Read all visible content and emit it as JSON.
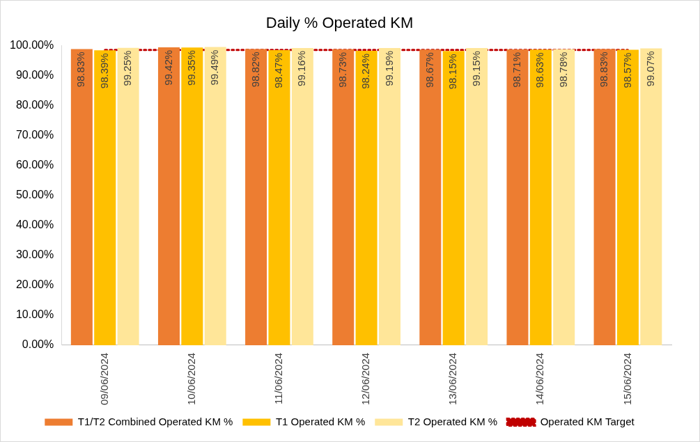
{
  "chart_data": {
    "type": "bar",
    "title": "Daily % Operated KM",
    "categories": [
      "09/06/2024",
      "10/06/2024",
      "11/06/2024",
      "12/06/2024",
      "13/06/2024",
      "14/06/2024",
      "15/06/2024"
    ],
    "ylim": [
      0,
      100
    ],
    "yticks": [
      {
        "value": 0,
        "label": "0.00%"
      },
      {
        "value": 10,
        "label": "10.00%"
      },
      {
        "value": 20,
        "label": "20.00%"
      },
      {
        "value": 30,
        "label": "30.00%"
      },
      {
        "value": 40,
        "label": "40.00%"
      },
      {
        "value": 50,
        "label": "50.00%"
      },
      {
        "value": 60,
        "label": "60.00%"
      },
      {
        "value": 70,
        "label": "70.00%"
      },
      {
        "value": 80,
        "label": "80.00%"
      },
      {
        "value": 90,
        "label": "90.00%"
      },
      {
        "value": 100,
        "label": "100.00%"
      }
    ],
    "grid": false,
    "legend": "bottom",
    "series": [
      {
        "name": "T1/T2 Combined Operated KM %",
        "type": "bar",
        "color": "#ed7d31",
        "data_labels": true,
        "values": [
          98.83,
          99.42,
          98.82,
          98.73,
          98.67,
          98.71,
          98.83
        ],
        "value_labels": [
          "98.83%",
          "99.42%",
          "98.82%",
          "98.73%",
          "98.67%",
          "98.71%",
          "98.83%"
        ]
      },
      {
        "name": "T1 Operated KM %",
        "type": "bar",
        "color": "#ffc000",
        "data_labels": true,
        "values": [
          98.39,
          99.35,
          98.47,
          98.24,
          98.15,
          98.63,
          98.57
        ],
        "value_labels": [
          "98.39%",
          "99.35%",
          "98.47%",
          "98.24%",
          "98.15%",
          "98.63%",
          "98.57%"
        ]
      },
      {
        "name": "T2 Operated KM %",
        "type": "bar",
        "color": "#ffe699",
        "data_labels": true,
        "values": [
          99.25,
          99.49,
          99.16,
          99.19,
          99.15,
          98.78,
          99.07
        ],
        "value_labels": [
          "99.25%",
          "99.49%",
          "99.16%",
          "99.19%",
          "99.15%",
          "98.78%",
          "99.07%"
        ]
      },
      {
        "name": "Operated KM Target",
        "type": "line",
        "color": "#c00000",
        "line_style": "dotted",
        "marker": "none",
        "data_labels": false,
        "values": [
          98.5,
          98.5,
          98.5,
          98.5,
          98.5,
          98.5,
          98.5
        ]
      }
    ]
  }
}
